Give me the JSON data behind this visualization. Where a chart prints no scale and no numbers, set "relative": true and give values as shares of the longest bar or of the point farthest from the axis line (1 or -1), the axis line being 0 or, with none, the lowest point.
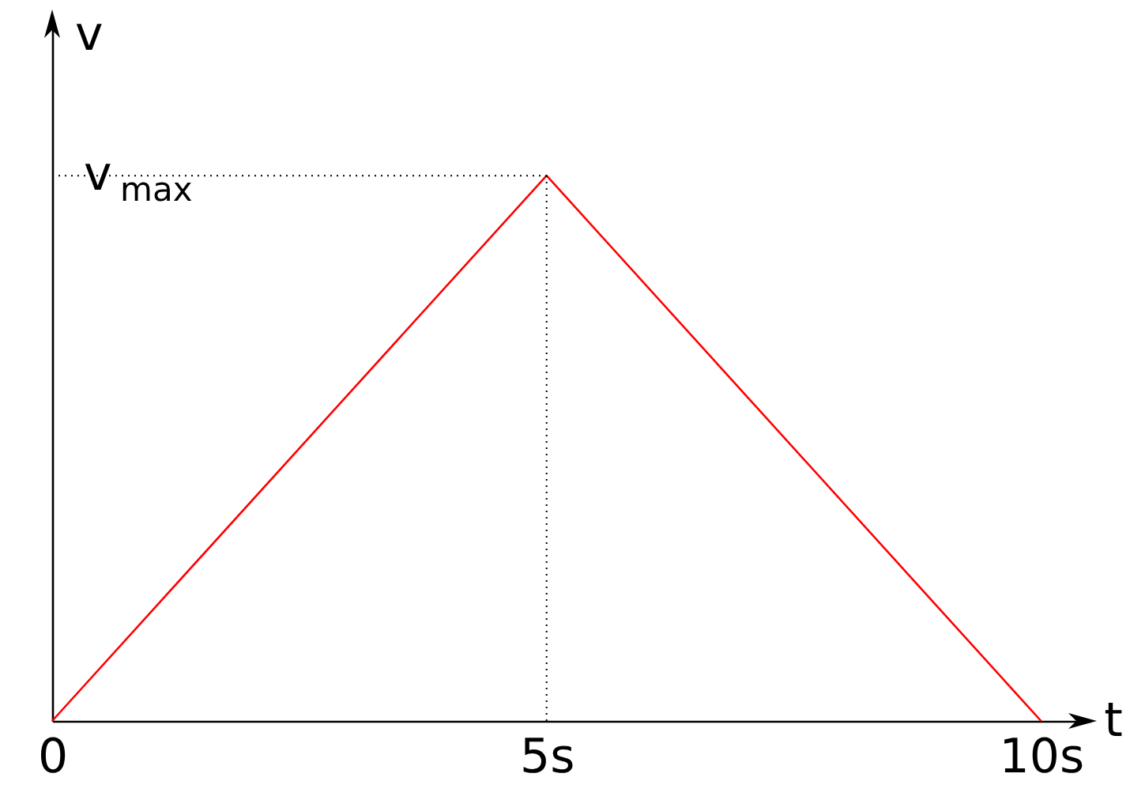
{
  "chart_data": {
    "type": "line",
    "relative": true,
    "xlabel": "t",
    "ylabel": "v",
    "x": [
      0,
      5,
      10
    ],
    "series": [
      {
        "color": "#ff0000",
        "values": [
          0,
          1,
          0
        ]
      }
    ],
    "xlim": [
      0,
      10.5
    ],
    "xticks": [
      {
        "value": 0,
        "label": "0"
      },
      {
        "value": 5,
        "label": "5s"
      },
      {
        "value": 10,
        "label": "10s"
      }
    ],
    "ref_lines": [
      {
        "axis": "y",
        "value": 1,
        "label": "v$_{max}$",
        "color": "#000000",
        "line_style": "dotted"
      },
      {
        "axis": "x",
        "value": 5,
        "color": "#000000",
        "line_style": "dotted"
      }
    ],
    "grid": false,
    "marker": "none",
    "line_style": "solid"
  }
}
